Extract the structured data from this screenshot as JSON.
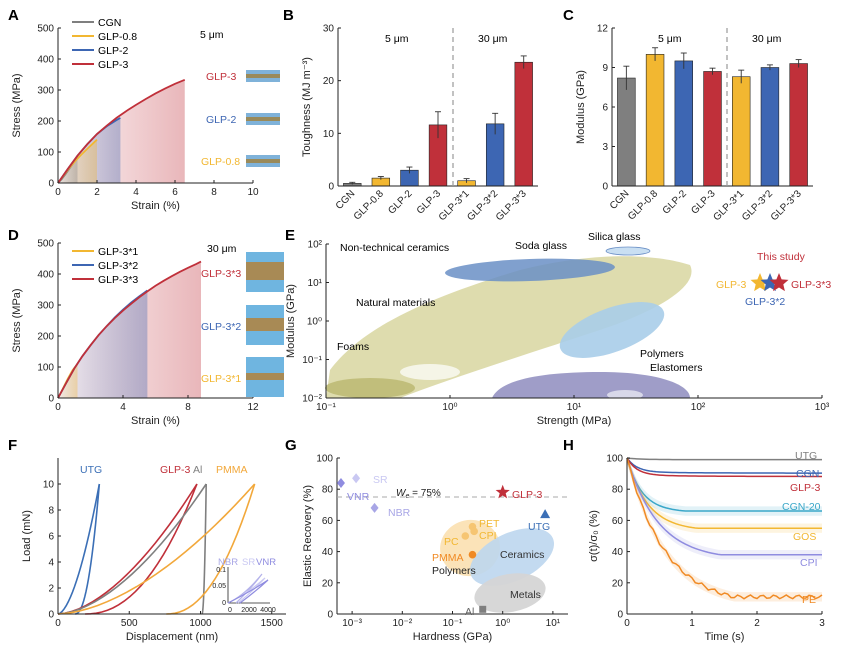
{
  "colors": {
    "CGN": "#7f7f7f",
    "GLP08": "#f2b731",
    "GLP2": "#3d66b3",
    "GLP3": "#c0303a",
    "UTG": "#3b6fb6",
    "PMMA": "#f2a83b",
    "lav": "#a8a6e6",
    "orange": "#f08a24"
  },
  "chart_data": [
    {
      "panel": "A",
      "type": "line",
      "xlabel": "Strain (%)",
      "ylabel": "Stress (MPa)",
      "xlim": [
        0,
        10
      ],
      "ylim": [
        0,
        500
      ],
      "xticks": [
        0,
        2,
        4,
        6,
        8,
        10
      ],
      "yticks": [
        0,
        100,
        200,
        300,
        400,
        500
      ],
      "annotation": "5 μm",
      "series": [
        {
          "name": "CGN",
          "x": [
            0,
            0.2,
            0.4,
            0.6,
            0.8,
            1.0
          ],
          "y": [
            0,
            13,
            30,
            48,
            65,
            80
          ]
        },
        {
          "name": "GLP-0.8",
          "x": [
            0,
            0.3,
            0.6,
            0.9,
            1.2,
            1.5,
            1.8,
            2.0
          ],
          "y": [
            0,
            25,
            50,
            72,
            92,
            110,
            128,
            140
          ]
        },
        {
          "name": "GLP-2",
          "x": [
            0,
            0.5,
            1.0,
            1.5,
            2.0,
            2.5,
            3.0,
            3.2
          ],
          "y": [
            0,
            45,
            88,
            125,
            158,
            183,
            203,
            210
          ]
        },
        {
          "name": "GLP-3",
          "x": [
            0,
            0.5,
            1.0,
            1.5,
            2.0,
            2.5,
            3.0,
            3.5,
            4.0,
            4.5,
            5.0,
            5.5,
            6.0,
            6.5
          ],
          "y": [
            0,
            45,
            88,
            125,
            158,
            185,
            210,
            232,
            252,
            271,
            289,
            305,
            320,
            333
          ]
        }
      ],
      "labels": [
        "GLP-3",
        "GLP-2",
        "GLP-0.8"
      ]
    },
    {
      "panel": "B",
      "type": "bar",
      "ylabel": "Toughness (MJ m⁻³)",
      "ylim": [
        0,
        30
      ],
      "yticks": [
        0,
        10,
        20,
        30
      ],
      "categories": [
        "CGN",
        "GLP-0.8",
        "GLP-2",
        "GLP-3",
        "GLP-3*1",
        "GLP-3*2",
        "GLP-3*3"
      ],
      "values": [
        0.5,
        1.5,
        3.0,
        11.6,
        1.0,
        11.8,
        23.5
      ],
      "errors": [
        0.2,
        0.3,
        0.6,
        2.5,
        0.4,
        2.0,
        1.2
      ],
      "groups": [
        "5 μm",
        "30 μm"
      ]
    },
    {
      "panel": "C",
      "type": "bar",
      "ylabel": "Modulus (GPa)",
      "ylim": [
        0,
        12
      ],
      "yticks": [
        0,
        3,
        6,
        9,
        12
      ],
      "categories": [
        "CGN",
        "GLP-0.8",
        "GLP-2",
        "GLP-3",
        "GLP-3*1",
        "GLP-3*2",
        "GLP-3*3"
      ],
      "values": [
        8.2,
        10.0,
        9.5,
        8.7,
        8.3,
        9.0,
        9.3
      ],
      "errors": [
        0.9,
        0.5,
        0.6,
        0.25,
        0.5,
        0.2,
        0.3
      ],
      "groups": [
        "5 μm",
        "30 μm"
      ]
    },
    {
      "panel": "D",
      "type": "line",
      "xlabel": "Strain (%)",
      "ylabel": "Stress (MPa)",
      "xlim": [
        0,
        12
      ],
      "ylim": [
        0,
        500
      ],
      "xticks": [
        0,
        4,
        8,
        12
      ],
      "yticks": [
        0,
        100,
        200,
        300,
        400,
        500
      ],
      "annotation": "30 μm",
      "series": [
        {
          "name": "GLP-3*1",
          "x": [
            0,
            0.3,
            0.6,
            0.9,
            1.2
          ],
          "y": [
            0,
            30,
            62,
            90,
            110
          ]
        },
        {
          "name": "GLP-3*2",
          "x": [
            0,
            0.5,
            1.0,
            1.5,
            2.0,
            2.5,
            3.0,
            3.5,
            4.0,
            4.5,
            5.0,
            5.5
          ],
          "y": [
            0,
            48,
            95,
            135,
            170,
            203,
            232,
            260,
            285,
            308,
            328,
            347
          ]
        },
        {
          "name": "GLP-3*3",
          "x": [
            0,
            0.5,
            1.0,
            1.5,
            2.0,
            2.5,
            3.0,
            3.5,
            4.0,
            4.5,
            5.0,
            5.5,
            6.0,
            6.5,
            7.0,
            7.5,
            8.0,
            8.5,
            8.8
          ],
          "y": [
            0,
            48,
            95,
            135,
            170,
            203,
            232,
            258,
            282,
            304,
            325,
            344,
            362,
            378,
            393,
            407,
            420,
            432,
            440
          ]
        }
      ],
      "labels": [
        "GLP-3*3",
        "GLP-3*2",
        "GLP-3*1"
      ]
    },
    {
      "panel": "E",
      "type": "scatter",
      "xlabel": "Strength (MPa)",
      "ylabel": "Modulus (GPa)",
      "xscale": "log",
      "yscale": "log",
      "xlim": [
        0.1,
        1000
      ],
      "ylim": [
        0.01,
        100
      ],
      "xtick_labels": [
        "10⁻¹",
        "10⁰",
        "10¹",
        "10²",
        "10³"
      ],
      "ytick_labels": [
        "10⁻²",
        "10⁻¹",
        "10⁰",
        "10¹",
        "10²"
      ],
      "regions": [
        "Non-technical ceramics",
        "Soda glass",
        "Silica glass",
        "Natural materials",
        "Foams",
        "Polymers",
        "Elastomers"
      ],
      "points": [
        {
          "name": "GLP-3",
          "x": 330,
          "y": 8.7
        },
        {
          "name": "GLP-3*2",
          "x": 350,
          "y": 9.0
        },
        {
          "name": "GLP-3*3",
          "x": 440,
          "y": 9.3
        }
      ],
      "annotation": "This study"
    },
    {
      "panel": "F",
      "type": "line",
      "xlabel": "Displacement (nm)",
      "ylabel": "Load (mN)",
      "xlim": [
        0,
        1600
      ],
      "ylim": [
        0,
        12
      ],
      "xticks": [
        0,
        500,
        1000,
        1500
      ],
      "yticks": [
        0,
        2,
        4,
        6,
        8,
        10
      ],
      "series": [
        {
          "name": "UTG",
          "max_displacement": 290,
          "residual": 120,
          "max_load": 10
        },
        {
          "name": "GLP-3",
          "max_displacement": 975,
          "residual": 190,
          "max_load": 10
        },
        {
          "name": "Al",
          "max_displacement": 1040,
          "residual": 1010,
          "max_load": 10
        },
        {
          "name": "PMMA",
          "max_displacement": 1380,
          "residual": 760,
          "max_load": 10
        }
      ],
      "inset": {
        "series": [
          "NBR",
          "SR",
          "VNR"
        ],
        "xticks": [
          0,
          2000,
          4000
        ],
        "yticks": [
          0.0,
          0.05,
          0.1
        ]
      }
    },
    {
      "panel": "G",
      "type": "scatter",
      "xlabel": "Hardness (GPa)",
      "ylabel": "Elastic Recovery (%)",
      "xscale": "log",
      "xlim": [
        0.0005,
        20
      ],
      "ylim": [
        0,
        100
      ],
      "xtick_labels": [
        "10⁻³",
        "10⁻²",
        "10⁻¹",
        "10⁰",
        "10¹"
      ],
      "yticks": [
        0,
        20,
        40,
        60,
        80,
        100
      ],
      "reference_line": {
        "label": "W_e = 75%",
        "y": 75
      },
      "points": [
        {
          "name": "VNR",
          "x": 0.0006,
          "y": 84
        },
        {
          "name": "SR",
          "x": 0.0012,
          "y": 87
        },
        {
          "name": "NBR",
          "x": 0.0028,
          "y": 68
        },
        {
          "name": "PET",
          "x": 0.25,
          "y": 56
        },
        {
          "name": "CPI",
          "x": 0.27,
          "y": 53
        },
        {
          "name": "PC",
          "x": 0.18,
          "y": 50
        },
        {
          "name": "PMMA",
          "x": 0.25,
          "y": 38
        },
        {
          "name": "GLP-3",
          "x": 1.0,
          "y": 78
        },
        {
          "name": "UTG",
          "x": 7.0,
          "y": 64
        },
        {
          "name": "Al",
          "x": 0.4,
          "y": 3
        }
      ],
      "regions": [
        "Polymers",
        "Ceramics",
        "Metals"
      ]
    },
    {
      "panel": "H",
      "type": "line",
      "xlabel": "Time (s)",
      "ylabel": "σ(t)/σ₀ (%)",
      "xlim": [
        0,
        3
      ],
      "ylim": [
        0,
        100
      ],
      "xticks": [
        0,
        1,
        2,
        3
      ],
      "yticks": [
        0,
        20,
        40,
        60,
        80,
        100
      ],
      "series": [
        {
          "name": "UTG",
          "final": 99,
          "drop": 1
        },
        {
          "name": "CGN",
          "final": 91,
          "drop": 9
        },
        {
          "name": "GLP-3",
          "final": 89,
          "drop": 11
        },
        {
          "name": "CGN-20",
          "final": 67,
          "drop": 33
        },
        {
          "name": "GOS",
          "final": 56,
          "drop": 44
        },
        {
          "name": "CPI",
          "final": 39,
          "drop": 61
        },
        {
          "name": "PE",
          "final": 12,
          "drop": 88
        }
      ]
    }
  ],
  "panel_labels": [
    "A",
    "B",
    "C",
    "D",
    "E",
    "F",
    "G",
    "H"
  ],
  "legendA": [
    "CGN",
    "GLP-0.8",
    "GLP-2",
    "GLP-3"
  ],
  "legendD": [
    "GLP-3*1",
    "GLP-3*2",
    "GLP-3*3"
  ],
  "texts": {
    "a_thick": "5 μm",
    "d_thick": "30 μm",
    "b_g1": "5 μm",
    "b_g2": "30 μm",
    "c_g1": "5 μm",
    "c_g2": "30 μm",
    "e_noncer": "Non-technical ceramics",
    "e_soda": "Soda glass",
    "e_silica": "Silica glass",
    "e_natural": "Natural materials",
    "e_foams": "Foams",
    "e_polymers": "Polymers",
    "e_elast": "Elastomers",
    "e_study": "This study",
    "e_glp3": "GLP-3",
    "e_glp3s2": "GLP-3*2",
    "e_glp3s3": "GLP-3*3",
    "f_utg": "UTG",
    "f_glp3": "GLP-3",
    "f_al": "Al",
    "f_pmma": "PMMA",
    "f_nbr": "NBR",
    "f_sr": "SR",
    "f_vnr": "VNR",
    "g_we": "W",
    "g_we_sub": "e",
    "g_we_val": " = 75%",
    "g_glp3": "GLP-3",
    "g_utg": "UTG",
    "g_sr": "SR",
    "g_vnr": "VNR",
    "g_nbr": "NBR",
    "g_pet": "PET",
    "g_cpi": "CPI",
    "g_pc": "PC",
    "g_pmma": "PMMA",
    "g_polymers": "Polymers",
    "g_ceramics": "Ceramics",
    "g_metals": "Metals",
    "g_al": "Al",
    "h_utg": "UTG",
    "h_cgn": "CGN",
    "h_glp3": "GLP-3",
    "h_cgn20": "CGN-20",
    "h_gos": "GOS",
    "h_cpi": "CPI",
    "h_pe": "PE"
  }
}
